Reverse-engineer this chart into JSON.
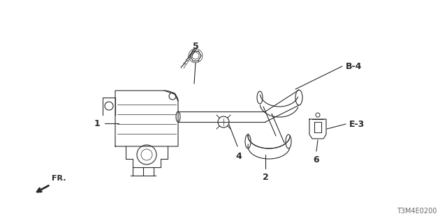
{
  "bg_color": "#ffffff",
  "line_color": "#2a2a2a",
  "title_code": "T3M4E0200",
  "fr_label": "FR.",
  "figsize": [
    6.4,
    3.2
  ],
  "dpi": 100,
  "label_1": "1",
  "label_2": "2",
  "label_4": "4",
  "label_5": "5",
  "label_6": "6",
  "label_B4": "B-4",
  "label_E3": "E-3"
}
